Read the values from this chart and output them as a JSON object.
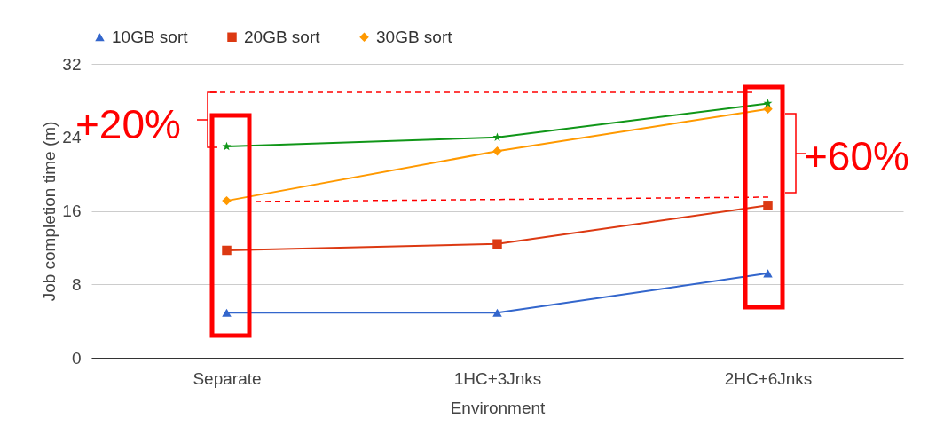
{
  "chart_data": {
    "type": "line",
    "xlabel": "Environment",
    "ylabel": "Job completion time (m)",
    "categories": [
      "Separate",
      "1HC+3Jnks",
      "2HC+6Jnks"
    ],
    "series": [
      {
        "name": "10GB sort",
        "color": "#3366cc",
        "marker": "triangle",
        "values": [
          4.9,
          4.9,
          9.2
        ]
      },
      {
        "name": "20GB sort",
        "color": "#dc3912",
        "marker": "square",
        "values": [
          11.7,
          12.4,
          16.6
        ]
      },
      {
        "name": "30GB sort",
        "color": "#ff9900",
        "marker": "diamond",
        "values": [
          17.1,
          22.5,
          27.1
        ]
      },
      {
        "color": "#109618",
        "marker": "star",
        "values": [
          23.0,
          24.0,
          27.7
        ]
      }
    ],
    "ylim": [
      0,
      32
    ],
    "yticks": [
      0,
      8,
      16,
      24,
      32
    ],
    "grid": "y",
    "legend": "top",
    "annotations": [
      "+20%",
      "+60%"
    ]
  }
}
